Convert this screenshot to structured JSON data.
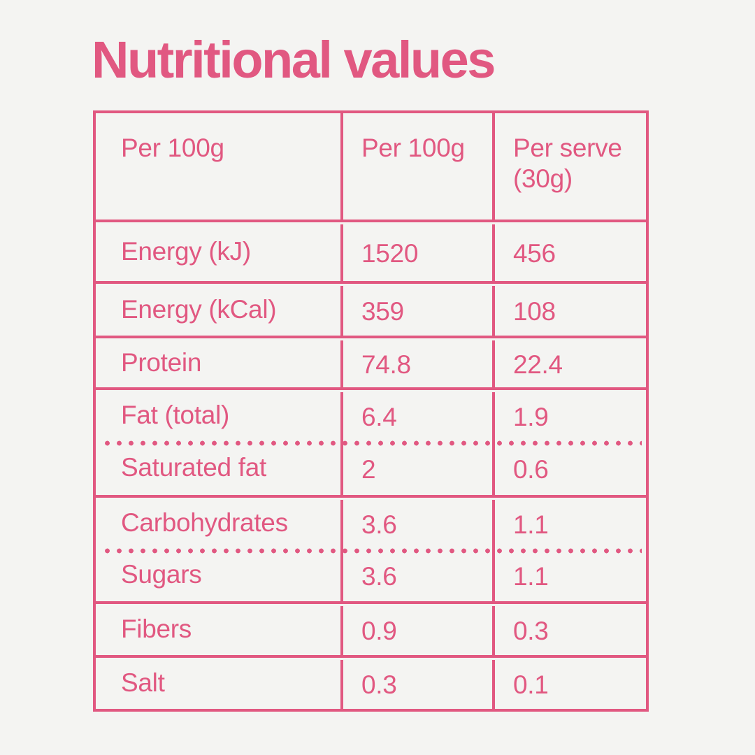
{
  "colors": {
    "accent": "#e15881",
    "background": "#f4f4f2"
  },
  "title": "Nutritional values",
  "table": {
    "headers": [
      "Per 100g",
      "Per 100g",
      "Per serve (30g)"
    ],
    "rows": [
      {
        "label": "Energy (kJ)",
        "per_100g": "1520",
        "per_serve": "456"
      },
      {
        "label": "Energy (kCal)",
        "per_100g": "359",
        "per_serve": "108"
      },
      {
        "label": "Protein",
        "per_100g": "74.8",
        "per_serve": "22.4"
      },
      {
        "label": "Fat (total)",
        "per_100g": "6.4",
        "per_serve": "1.9"
      },
      {
        "label": "Saturated fat",
        "per_100g": "2",
        "per_serve": "0.6"
      },
      {
        "label": "Carbohydrates",
        "per_100g": "3.6",
        "per_serve": "1.1"
      },
      {
        "label": "Sugars",
        "per_100g": "3.6",
        "per_serve": "1.1"
      },
      {
        "label": "Fibers",
        "per_100g": "0.9",
        "per_serve": "0.3"
      },
      {
        "label": "Salt",
        "per_100g": "0.3",
        "per_serve": "0.1"
      }
    ]
  }
}
